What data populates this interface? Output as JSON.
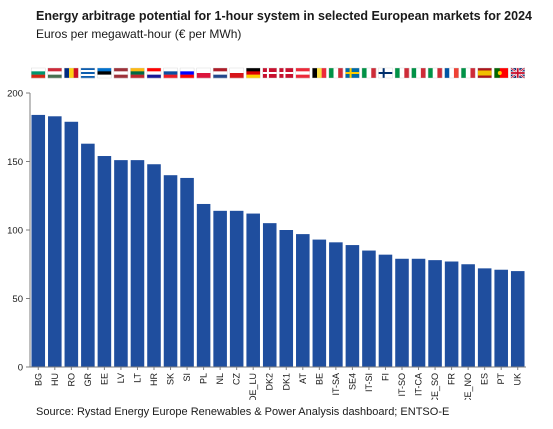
{
  "header": {
    "title": "Energy arbitrage potential for 1-hour system in selected European markets for 2024",
    "subtitle": "Euros per megawatt-hour (€ per MWh)"
  },
  "footer": {
    "source": "Source: Rystad Energy Europe Renewables & Power Analysis dashboard; ENTSO-E"
  },
  "colors": {
    "bar": "#1f4e9e",
    "axis": "#7f7f7f",
    "text": "#1a1a1a"
  },
  "chart_data": {
    "type": "bar",
    "title": "Energy arbitrage potential for 1-hour system in selected European markets for 2024",
    "subtitle": "Euros per megawatt-hour (€ per MWh)",
    "xlabel": "",
    "ylabel": "",
    "ylim": [
      0,
      200
    ],
    "yticks": [
      0,
      50,
      100,
      150,
      200
    ],
    "grid": false,
    "legend": "none",
    "categories": [
      "BG",
      "HU",
      "RO",
      "GR",
      "EE",
      "LV",
      "LT",
      "HR",
      "SK",
      "SI",
      "PL",
      "NL",
      "CZ",
      "DE_LU",
      "DK2",
      "DK1",
      "AT",
      "BE",
      "IT-SA",
      "SE4",
      "IT-SI",
      "FI",
      "IT-SO",
      "IT-CA",
      "IT-CE_SO",
      "FR",
      "IT-CE_NO",
      "ES",
      "PT",
      "UK"
    ],
    "values": [
      184,
      183,
      179,
      163,
      154,
      151,
      151,
      148,
      140,
      138,
      119,
      114,
      114,
      112,
      105,
      100,
      97,
      93,
      91,
      89,
      85,
      82,
      79,
      79,
      78,
      77,
      75,
      72,
      71,
      70
    ],
    "flags": [
      {
        "code": "BG",
        "stripes": "h",
        "colors": [
          "#ffffff",
          "#00966e",
          "#d62612"
        ]
      },
      {
        "code": "HU",
        "stripes": "h",
        "colors": [
          "#ce2939",
          "#ffffff",
          "#477050"
        ]
      },
      {
        "code": "RO",
        "stripes": "v",
        "colors": [
          "#002b7f",
          "#fcd116",
          "#ce1126"
        ]
      },
      {
        "code": "GR",
        "stripes": "h",
        "colors": [
          "#0d5eaf",
          "#ffffff",
          "#0d5eaf",
          "#ffffff",
          "#0d5eaf"
        ]
      },
      {
        "code": "EE",
        "stripes": "h",
        "colors": [
          "#0072ce",
          "#000000",
          "#ffffff"
        ]
      },
      {
        "code": "LV",
        "stripes": "h",
        "colors": [
          "#9e3039",
          "#ffffff",
          "#9e3039"
        ]
      },
      {
        "code": "LT",
        "stripes": "h",
        "colors": [
          "#fdb913",
          "#006a44",
          "#c1272d"
        ]
      },
      {
        "code": "HR",
        "stripes": "h",
        "colors": [
          "#ff0000",
          "#ffffff",
          "#171796"
        ]
      },
      {
        "code": "SK",
        "stripes": "h",
        "colors": [
          "#ffffff",
          "#0b4ea2",
          "#ee1c25"
        ]
      },
      {
        "code": "SI",
        "stripes": "h",
        "colors": [
          "#ffffff",
          "#0000ff",
          "#ff0000"
        ]
      },
      {
        "code": "PL",
        "stripes": "h",
        "colors": [
          "#ffffff",
          "#dc143c"
        ]
      },
      {
        "code": "NL",
        "stripes": "h",
        "colors": [
          "#ae1c28",
          "#ffffff",
          "#21468b"
        ]
      },
      {
        "code": "CZ",
        "stripes": "h",
        "colors": [
          "#ffffff",
          "#d7141a"
        ]
      },
      {
        "code": "DE",
        "stripes": "h",
        "colors": [
          "#000000",
          "#dd0000",
          "#ffce00"
        ]
      },
      {
        "code": "DK",
        "stripes": "cross",
        "colors": [
          "#c8102e",
          "#ffffff"
        ]
      },
      {
        "code": "DK",
        "stripes": "cross",
        "colors": [
          "#c8102e",
          "#ffffff"
        ]
      },
      {
        "code": "AT",
        "stripes": "h",
        "colors": [
          "#ed2939",
          "#ffffff",
          "#ed2939"
        ]
      },
      {
        "code": "BE",
        "stripes": "v",
        "colors": [
          "#000000",
          "#fae042",
          "#ed2939"
        ]
      },
      {
        "code": "IT",
        "stripes": "v",
        "colors": [
          "#009246",
          "#ffffff",
          "#ce2b37"
        ]
      },
      {
        "code": "SE",
        "stripes": "cross",
        "colors": [
          "#006aa7",
          "#fecc00"
        ]
      },
      {
        "code": "IT",
        "stripes": "v",
        "colors": [
          "#009246",
          "#ffffff",
          "#ce2b37"
        ]
      },
      {
        "code": "FI",
        "stripes": "cross",
        "colors": [
          "#ffffff",
          "#002f6c"
        ]
      },
      {
        "code": "IT",
        "stripes": "v",
        "colors": [
          "#009246",
          "#ffffff",
          "#ce2b37"
        ]
      },
      {
        "code": "IT",
        "stripes": "v",
        "colors": [
          "#009246",
          "#ffffff",
          "#ce2b37"
        ]
      },
      {
        "code": "IT",
        "stripes": "v",
        "colors": [
          "#009246",
          "#ffffff",
          "#ce2b37"
        ]
      },
      {
        "code": "FR",
        "stripes": "v",
        "colors": [
          "#0055a4",
          "#ffffff",
          "#ef4135"
        ]
      },
      {
        "code": "IT",
        "stripes": "v",
        "colors": [
          "#009246",
          "#ffffff",
          "#ce2b37"
        ]
      },
      {
        "code": "ES",
        "stripes": "h3",
        "colors": [
          "#aa151b",
          "#f1bf00",
          "#aa151b"
        ]
      },
      {
        "code": "PT",
        "stripes": "pt",
        "colors": [
          "#006600",
          "#ff0000"
        ]
      },
      {
        "code": "UK",
        "stripes": "uk",
        "colors": [
          "#012169",
          "#ffffff",
          "#c8102e"
        ]
      }
    ]
  }
}
